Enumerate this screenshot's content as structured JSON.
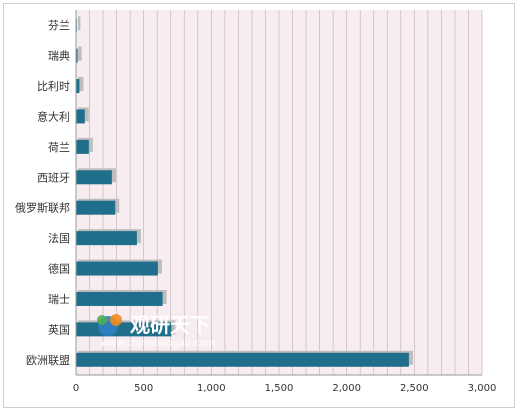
{
  "chart_data": {
    "type": "bar",
    "orientation": "horizontal",
    "categories": [
      "芬兰",
      "瑞典",
      "比利时",
      "意大利",
      "荷兰",
      "西班牙",
      "俄罗斯联邦",
      "法国",
      "德国",
      "瑞士",
      "英国",
      "欧洲联盟"
    ],
    "values": [
      3,
      12,
      25,
      65,
      95,
      265,
      290,
      450,
      605,
      640,
      705,
      2460
    ],
    "xlim": [
      0,
      3000
    ],
    "x_ticks": [
      0,
      500,
      1000,
      1500,
      2000,
      2500,
      3000
    ],
    "x_tick_labels": [
      "0",
      "500",
      "1,000",
      "1,500",
      "2,000",
      "2,500",
      "3,000"
    ],
    "grid": "vertical minor lines",
    "colors": {
      "bar": "#1f6e8c",
      "bar_shadow": "#bdbdbd",
      "plot_background": "#f7edf0",
      "grid_line": "#c9b4bb",
      "axis": "#999999"
    }
  },
  "watermark": {
    "brand": "观研天下",
    "url": "www.chinabaogao.com",
    "colors": {
      "blue": "#2f7fc1",
      "orange": "#f08a1c",
      "green": "#4caf50"
    }
  }
}
